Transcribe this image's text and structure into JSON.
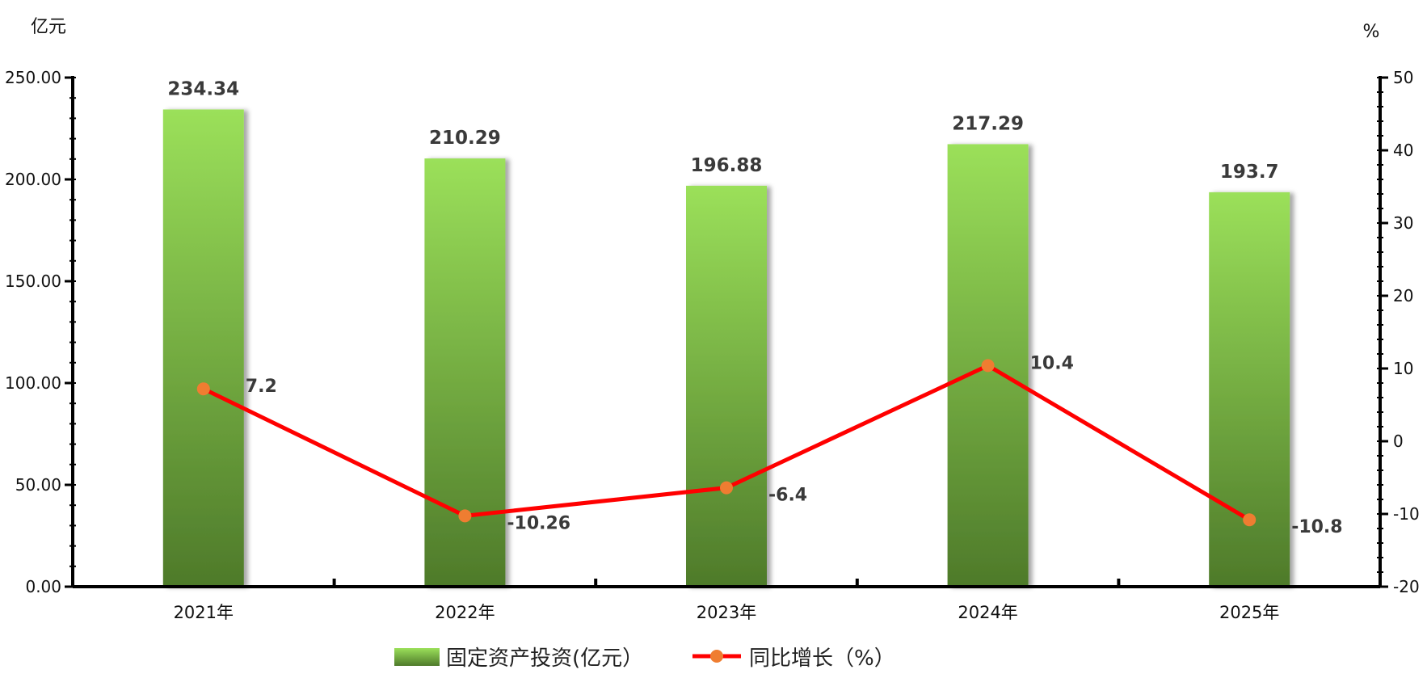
{
  "chart_data": {
    "type": "bar",
    "categories": [
      "2021年",
      "2022年",
      "2023年",
      "2024年",
      "2025年"
    ],
    "left_axis": {
      "unit": "亿元",
      "range": [
        0,
        250
      ],
      "ticks": [
        "0.00",
        "50.00",
        "100.00",
        "150.00",
        "200.00",
        "250.00"
      ]
    },
    "right_axis": {
      "unit": "%",
      "range": [
        -20,
        50
      ],
      "ticks": [
        "-20",
        "-10",
        "0",
        "10",
        "20",
        "30",
        "40",
        "50"
      ]
    },
    "series": [
      {
        "name": "固定资产投资(亿元）",
        "type": "bar",
        "axis": "left",
        "values": [
          234.34,
          210.29,
          196.88,
          217.29,
          193.7
        ],
        "labels": [
          "234.34",
          "210.29",
          "196.88",
          "217.29",
          "193.7"
        ]
      },
      {
        "name": "同比增长（%）",
        "type": "line",
        "axis": "right",
        "values": [
          7.2,
          -10.26,
          -6.4,
          10.4,
          -10.8
        ],
        "labels": [
          "7.2",
          "-10.26",
          "-6.4",
          "10.4",
          "-10.8"
        ]
      }
    ],
    "colors": {
      "bar_top": "#9be05a",
      "bar_bottom": "#4e7a2a",
      "line": "#ff0000",
      "marker": "#ef7d31",
      "axis": "#000000"
    },
    "grid": false,
    "legend_position": "bottom"
  }
}
